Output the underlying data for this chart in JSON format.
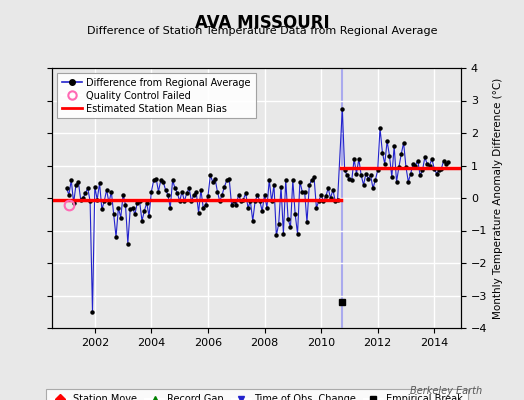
{
  "title": "AVA MISSOURI",
  "subtitle": "Difference of Station Temperature Data from Regional Average",
  "ylabel": "Monthly Temperature Anomaly Difference (°C)",
  "xlim": [
    2000.5,
    2014.95
  ],
  "ylim": [
    -4,
    4
  ],
  "yticks": [
    -4,
    -3,
    -2,
    -1,
    0,
    1,
    2,
    3,
    4
  ],
  "xticks": [
    2002,
    2004,
    2006,
    2008,
    2010,
    2012,
    2014
  ],
  "bias1_y": -0.07,
  "bias1_xstart": 2000.5,
  "bias1_xend": 2010.7,
  "bias2_y": 0.93,
  "bias2_xstart": 2010.7,
  "bias2_xend": 2014.95,
  "vertical_line_x": 2010.75,
  "empirical_break_x": 2010.75,
  "empirical_break_y": -3.2,
  "qc_fail_x": 2001.1,
  "qc_fail_y": -0.2,
  "background_color": "#e8e8e8",
  "plot_bg_color": "#e8e8e8",
  "line_color": "#2222cc",
  "bias_color": "red",
  "vert_line_color": "#aaaaee",
  "grid_color": "white",
  "watermark": "Berkeley Earth",
  "ts_x": [
    2001.0,
    2001.083,
    2001.167,
    2001.25,
    2001.333,
    2001.417,
    2001.5,
    2001.583,
    2001.667,
    2001.75,
    2001.833,
    2001.917,
    2002.0,
    2002.083,
    2002.167,
    2002.25,
    2002.333,
    2002.417,
    2002.5,
    2002.583,
    2002.667,
    2002.75,
    2002.833,
    2002.917,
    2003.0,
    2003.083,
    2003.167,
    2003.25,
    2003.333,
    2003.417,
    2003.5,
    2003.583,
    2003.667,
    2003.75,
    2003.833,
    2003.917,
    2004.0,
    2004.083,
    2004.167,
    2004.25,
    2004.333,
    2004.417,
    2004.5,
    2004.583,
    2004.667,
    2004.75,
    2004.833,
    2004.917,
    2005.0,
    2005.083,
    2005.167,
    2005.25,
    2005.333,
    2005.417,
    2005.5,
    2005.583,
    2005.667,
    2005.75,
    2005.833,
    2005.917,
    2006.0,
    2006.083,
    2006.167,
    2006.25,
    2006.333,
    2006.417,
    2006.5,
    2006.583,
    2006.667,
    2006.75,
    2006.833,
    2006.917,
    2007.0,
    2007.083,
    2007.167,
    2007.25,
    2007.333,
    2007.417,
    2007.5,
    2007.583,
    2007.667,
    2007.75,
    2007.833,
    2007.917,
    2008.0,
    2008.083,
    2008.167,
    2008.25,
    2008.333,
    2008.417,
    2008.5,
    2008.583,
    2008.667,
    2008.75,
    2008.833,
    2008.917,
    2009.0,
    2009.083,
    2009.167,
    2009.25,
    2009.333,
    2009.417,
    2009.5,
    2009.583,
    2009.667,
    2009.75,
    2009.833,
    2009.917,
    2010.0,
    2010.083,
    2010.167,
    2010.25,
    2010.333,
    2010.417,
    2010.5,
    2010.583,
    2010.75,
    2010.833,
    2010.917,
    2011.0,
    2011.083,
    2011.167,
    2011.25,
    2011.333,
    2011.417,
    2011.5,
    2011.583,
    2011.667,
    2011.75,
    2011.833,
    2011.917,
    2012.0,
    2012.083,
    2012.167,
    2012.25,
    2012.333,
    2012.417,
    2012.5,
    2012.583,
    2012.667,
    2012.75,
    2012.833,
    2012.917,
    2013.0,
    2013.083,
    2013.167,
    2013.25,
    2013.333,
    2013.417,
    2013.5,
    2013.583,
    2013.667,
    2013.75,
    2013.833,
    2013.917,
    2014.0,
    2014.083,
    2014.167,
    2014.25,
    2014.333,
    2014.417,
    2014.5
  ],
  "ts_y": [
    0.3,
    0.1,
    0.55,
    -0.15,
    0.4,
    0.5,
    -0.05,
    0.0,
    0.15,
    0.3,
    -0.1,
    -3.5,
    0.35,
    -0.05,
    0.45,
    -0.35,
    -0.1,
    0.25,
    -0.15,
    0.2,
    -0.5,
    -1.2,
    -0.3,
    -0.6,
    0.1,
    -0.2,
    -1.4,
    -0.35,
    -0.3,
    -0.5,
    -0.15,
    -0.1,
    -0.7,
    -0.4,
    -0.15,
    -0.55,
    0.2,
    0.55,
    0.6,
    0.2,
    0.55,
    0.5,
    0.25,
    0.1,
    -0.3,
    0.55,
    0.3,
    0.15,
    -0.1,
    0.2,
    -0.1,
    0.15,
    0.3,
    -0.1,
    0.1,
    0.2,
    -0.45,
    0.25,
    -0.3,
    -0.2,
    0.05,
    0.7,
    0.5,
    0.6,
    0.2,
    -0.1,
    0.1,
    0.35,
    0.55,
    0.6,
    -0.2,
    -0.1,
    -0.2,
    0.1,
    -0.1,
    -0.05,
    0.15,
    -0.3,
    -0.1,
    -0.7,
    -0.1,
    0.1,
    -0.1,
    -0.4,
    0.1,
    -0.3,
    0.55,
    -0.1,
    0.4,
    -1.15,
    -0.8,
    0.35,
    -1.1,
    0.55,
    -0.65,
    -0.9,
    0.55,
    -0.5,
    -1.1,
    0.5,
    0.2,
    0.2,
    -0.75,
    0.4,
    0.55,
    0.65,
    -0.3,
    -0.1,
    0.1,
    -0.1,
    0.05,
    0.3,
    0.0,
    0.25,
    -0.1,
    -0.05,
    2.75,
    0.85,
    0.7,
    0.6,
    0.55,
    1.2,
    0.75,
    1.2,
    0.7,
    0.4,
    0.75,
    0.6,
    0.7,
    0.3,
    0.55,
    0.85,
    2.15,
    1.4,
    1.05,
    1.75,
    1.3,
    0.65,
    1.6,
    0.5,
    0.95,
    1.35,
    1.7,
    0.95,
    0.5,
    0.75,
    1.05,
    1.0,
    1.15,
    0.7,
    0.85,
    1.25,
    1.05,
    1.0,
    1.2,
    0.9,
    0.75,
    0.85,
    0.9,
    1.15,
    1.05,
    1.1
  ]
}
